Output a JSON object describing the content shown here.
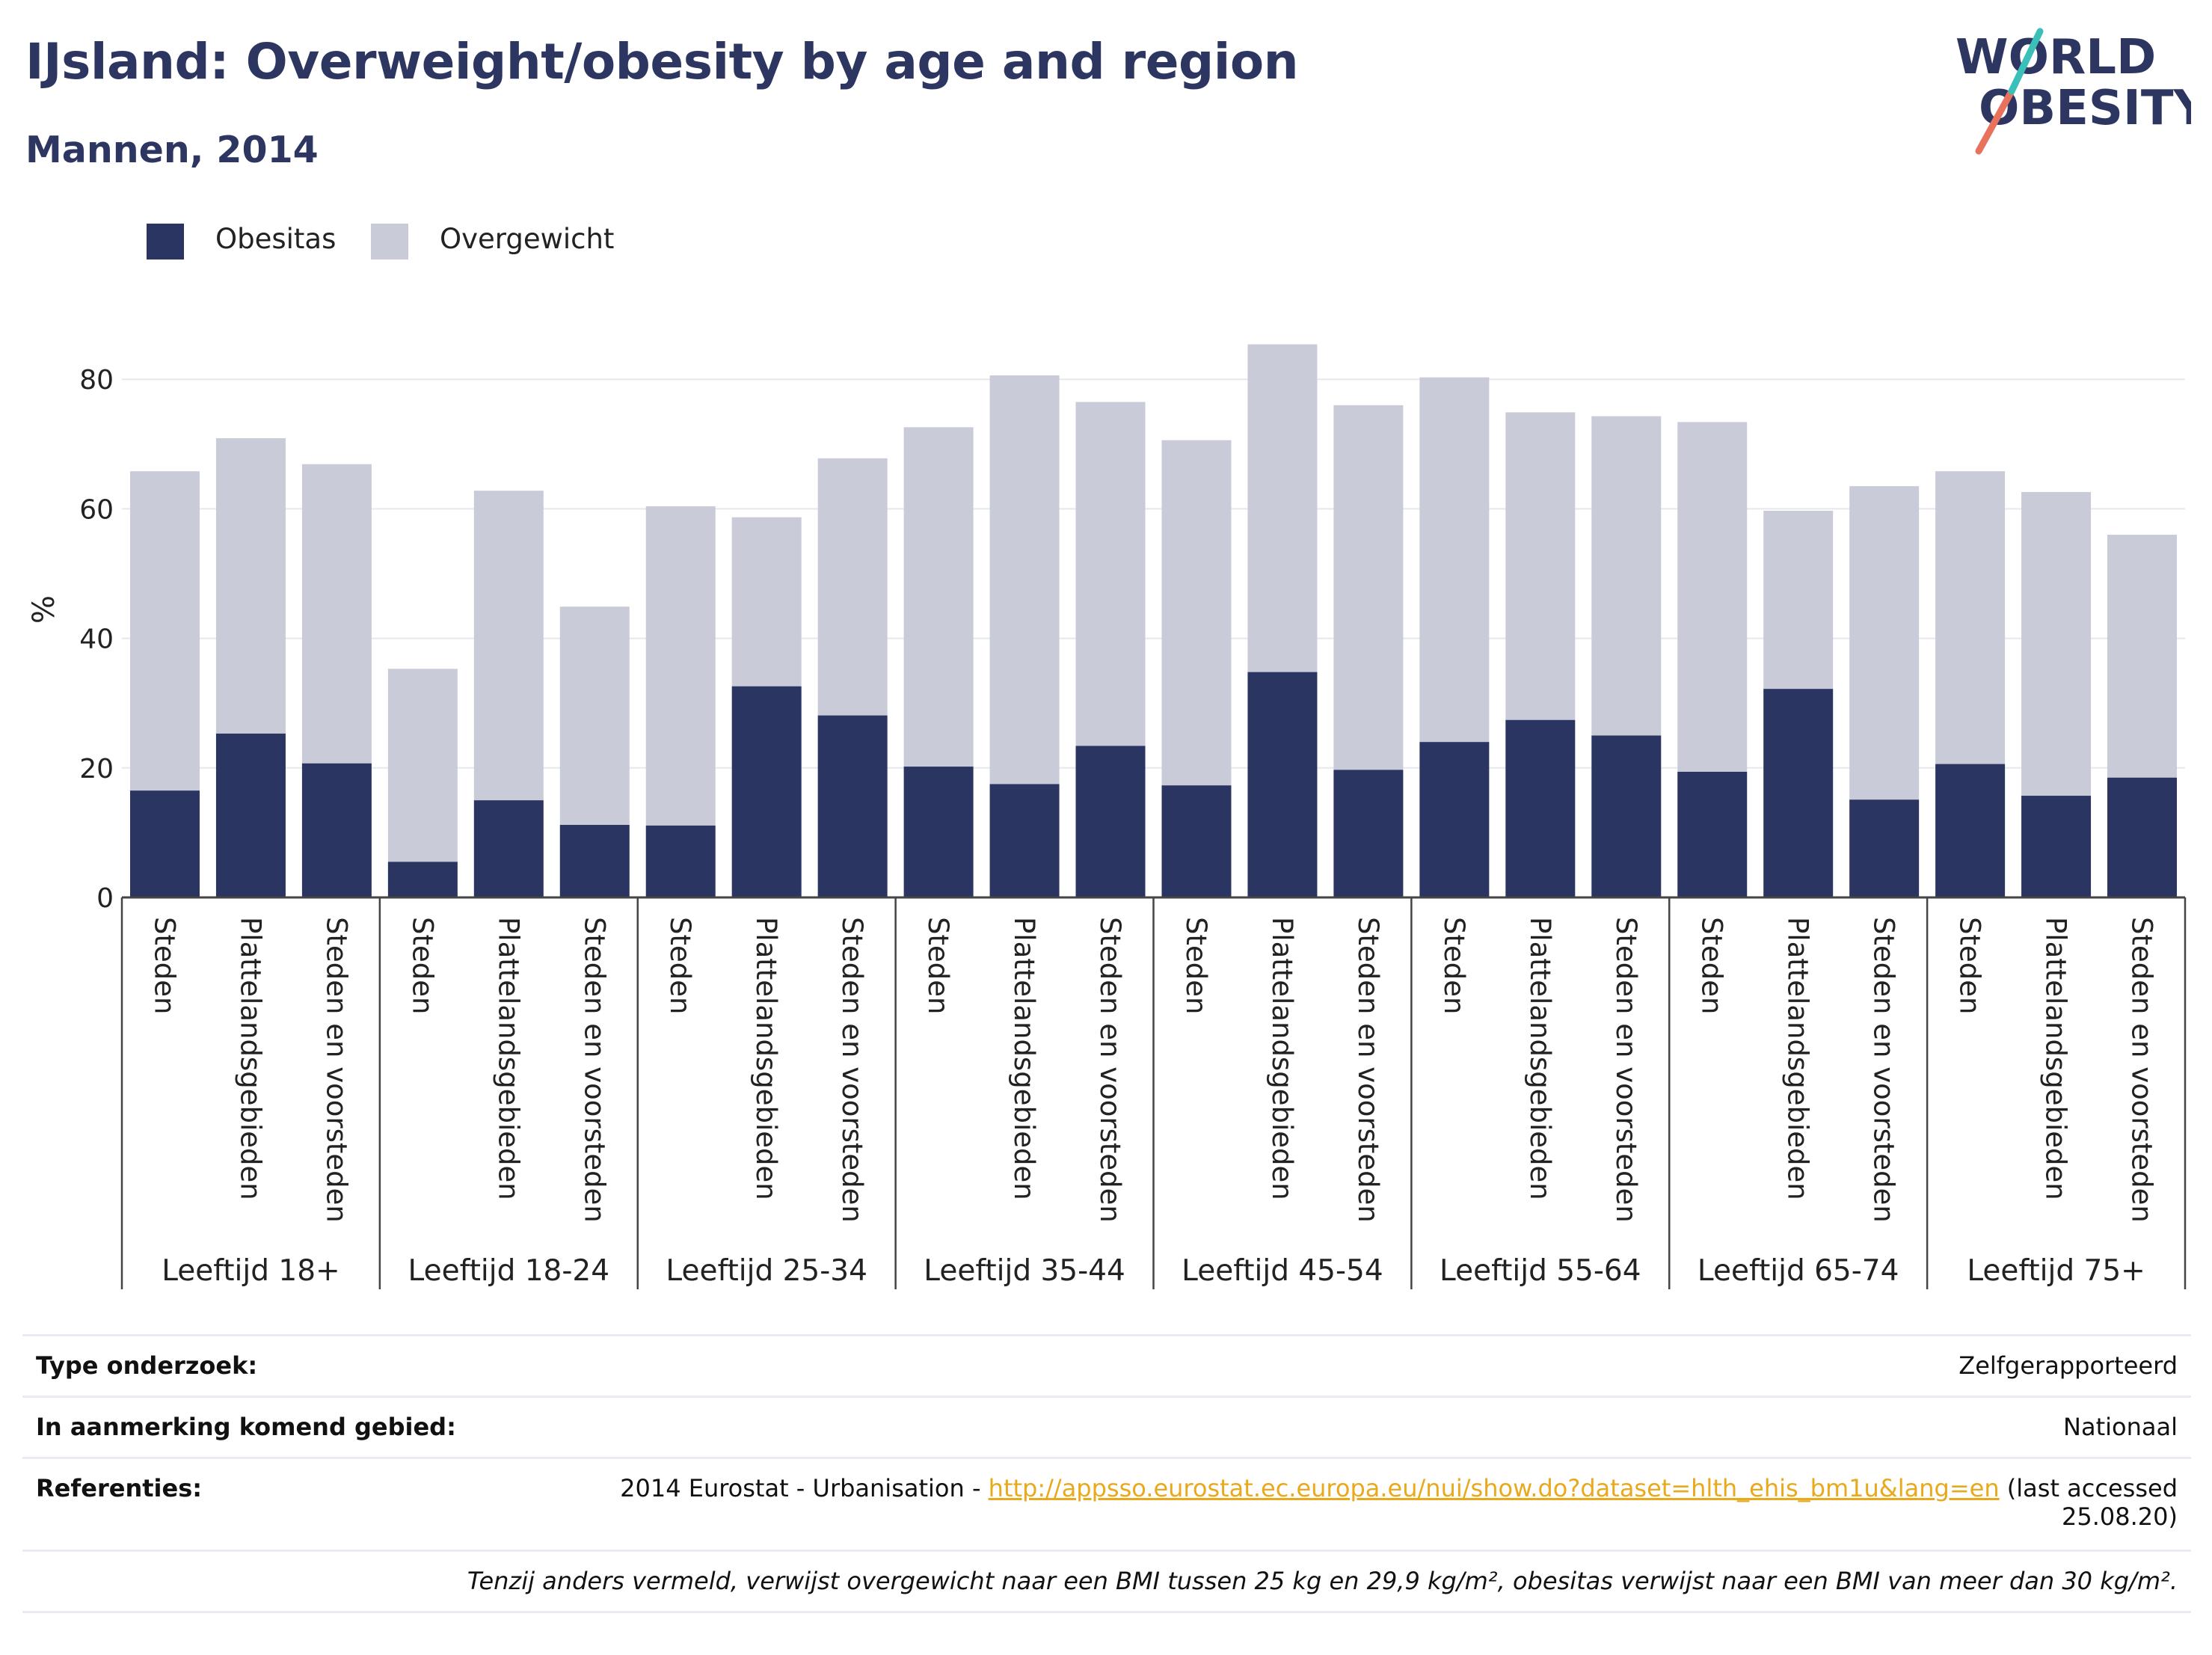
{
  "header": {
    "title": "IJsland: Overweight/obesity by age and region",
    "subtitle": "Mannen, 2014"
  },
  "logo": {
    "line1": "WORLD",
    "line2": "OBESITY"
  },
  "colors": {
    "obesitas": "#2b3562",
    "overgewicht": "#c9ccd8",
    "title": "#2d3561",
    "link": "#e8a91c",
    "logo_teal": "#3bbfb9",
    "logo_coral": "#e8725c"
  },
  "legend": [
    {
      "label": "Obesitas",
      "color": "#2b3562"
    },
    {
      "label": "Overgewicht",
      "color": "#c9ccd8"
    }
  ],
  "chart_data": {
    "type": "bar",
    "stacked": true,
    "ylabel": "%",
    "ylim": [
      0,
      90
    ],
    "yticks": [
      0,
      20,
      40,
      60,
      80
    ],
    "grid": true,
    "legend_position": "top-left",
    "groups": [
      {
        "label": "Leeftijd 18+",
        "categories": [
          "Steden",
          "Plattelandsgebieden",
          "Steden en voorsteden"
        ],
        "obesitas": [
          16.5,
          25.3,
          20.7
        ],
        "total": [
          65.8,
          70.9,
          66.9
        ]
      },
      {
        "label": "Leeftijd 18-24",
        "categories": [
          "Steden",
          "Plattelandsgebieden",
          "Steden en voorsteden"
        ],
        "obesitas": [
          5.5,
          15.0,
          11.2
        ],
        "total": [
          35.3,
          62.8,
          44.9
        ]
      },
      {
        "label": "Leeftijd 25-34",
        "categories": [
          "Steden",
          "Plattelandsgebieden",
          "Steden en voorsteden"
        ],
        "obesitas": [
          11.1,
          32.6,
          28.1
        ],
        "total": [
          60.4,
          58.7,
          67.8
        ]
      },
      {
        "label": "Leeftijd 35-44",
        "categories": [
          "Steden",
          "Plattelandsgebieden",
          "Steden en voorsteden"
        ],
        "obesitas": [
          20.2,
          17.5,
          23.4
        ],
        "total": [
          72.6,
          80.6,
          76.5
        ]
      },
      {
        "label": "Leeftijd 45-54",
        "categories": [
          "Steden",
          "Plattelandsgebieden",
          "Steden en voorsteden"
        ],
        "obesitas": [
          17.3,
          34.8,
          19.7
        ],
        "total": [
          70.6,
          85.4,
          76.0
        ]
      },
      {
        "label": "Leeftijd 55-64",
        "categories": [
          "Steden",
          "Plattelandsgebieden",
          "Steden en voorsteden"
        ],
        "obesitas": [
          24.0,
          27.4,
          25.0
        ],
        "total": [
          80.3,
          74.9,
          74.3
        ]
      },
      {
        "label": "Leeftijd 65-74",
        "categories": [
          "Steden",
          "Plattelandsgebieden",
          "Steden en voorsteden"
        ],
        "obesitas": [
          19.4,
          32.2,
          15.1
        ],
        "total": [
          73.4,
          59.7,
          63.5
        ]
      },
      {
        "label": "Leeftijd 75+",
        "categories": [
          "Steden",
          "Plattelandsgebieden",
          "Steden en voorsteden"
        ],
        "obesitas": [
          20.6,
          15.7,
          18.5
        ],
        "total": [
          65.8,
          62.6,
          56.0
        ]
      }
    ]
  },
  "info": {
    "survey_type_label": "Type onderzoek:",
    "survey_type_value": "Zelfgerapporteerd",
    "area_label": "In aanmerking komend gebied:",
    "area_value": "Nationaal",
    "references_label": "Referenties:",
    "references_prefix": "2014 Eurostat - Urbanisation - ",
    "references_link": "http://appsso.eurostat.ec.europa.eu/nui/show.do?dataset=hlth_ehis_bm1u&lang=en",
    "references_suffix": " (last accessed",
    "references_date": "25.08.20)",
    "note": "Tenzij anders vermeld, verwijst overgewicht naar een BMI tussen 25 kg en 29,9 kg/m², obesitas verwijst naar een BMI van meer dan 30 kg/m²."
  }
}
